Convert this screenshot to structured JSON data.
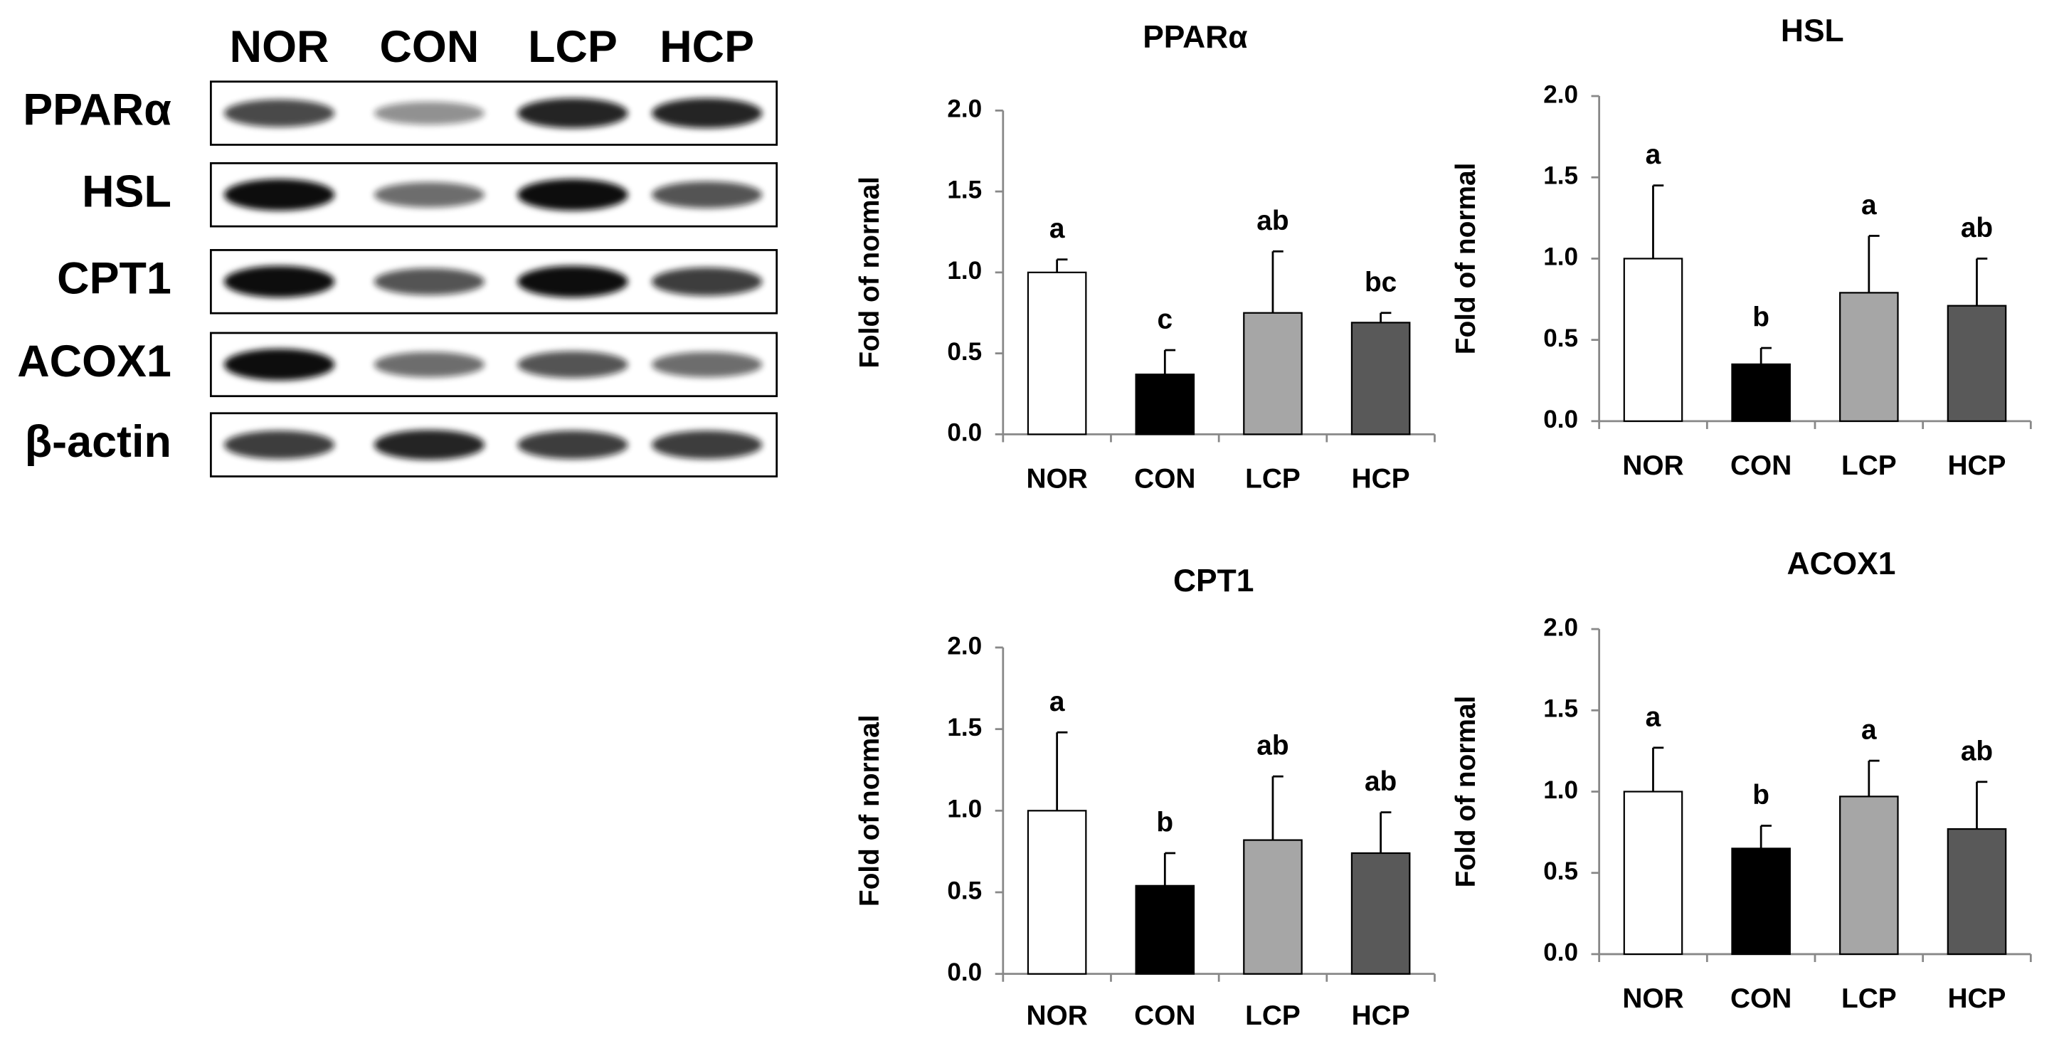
{
  "blot": {
    "lanes": [
      "NOR",
      "CON",
      "LCP",
      "HCP"
    ],
    "rows": [
      "PPARα",
      "HSL",
      "CPT1",
      "ACOX1",
      "β-actin"
    ]
  },
  "chart_data": [
    {
      "type": "bar",
      "title": "PPARα",
      "ylabel": "Fold of normal",
      "categories": [
        "NOR",
        "CON",
        "LCP",
        "HCP"
      ],
      "values": [
        1.0,
        0.37,
        0.75,
        0.69
      ],
      "errors": [
        0.08,
        0.15,
        0.38,
        0.06
      ],
      "annotations": [
        "a",
        "c",
        "ab",
        "bc"
      ],
      "colors": [
        "#ffffff",
        "#000000",
        "#a6a6a6",
        "#595959"
      ],
      "ylim": [
        0,
        2
      ],
      "yticks": [
        {
          "value": 0,
          "label": "0.0"
        },
        0.5,
        {
          "value": 1,
          "label": "1.0"
        },
        1.5,
        {
          "value": 2,
          "label": "2.0"
        }
      ]
    },
    {
      "type": "bar",
      "title": "HSL",
      "ylabel": "Fold of normal",
      "categories": [
        "NOR",
        "CON",
        "LCP",
        "HCP"
      ],
      "values": [
        1.0,
        0.35,
        0.79,
        0.71
      ],
      "errors": [
        0.45,
        0.1,
        0.35,
        0.29
      ],
      "annotations": [
        "a",
        "b",
        "a",
        "ab"
      ],
      "colors": [
        "#ffffff",
        "#000000",
        "#a6a6a6",
        "#595959"
      ],
      "ylim": [
        0,
        2
      ],
      "yticks": [
        {
          "value": 0,
          "label": "0.0"
        },
        0.5,
        {
          "value": 1,
          "label": "1.0"
        },
        1.5,
        {
          "value": 2,
          "label": "2.0"
        }
      ]
    },
    {
      "type": "bar",
      "title": "CPT1",
      "ylabel": "Fold of normal",
      "categories": [
        "NOR",
        "CON",
        "LCP",
        "HCP"
      ],
      "values": [
        1.0,
        0.54,
        0.82,
        0.74
      ],
      "errors": [
        0.48,
        0.2,
        0.39,
        0.25
      ],
      "annotations": [
        "a",
        "b",
        "ab",
        "ab"
      ],
      "colors": [
        "#ffffff",
        "#000000",
        "#a6a6a6",
        "#595959"
      ],
      "ylim": [
        0,
        2
      ],
      "yticks": [
        {
          "value": 0,
          "label": "0.0"
        },
        0.5,
        {
          "value": 1,
          "label": "1.0"
        },
        1.5,
        {
          "value": 2,
          "label": "2.0"
        }
      ]
    },
    {
      "type": "bar",
      "title": "ACOX1",
      "ylabel": "Fold of normal",
      "categories": [
        "NOR",
        "CON",
        "LCP",
        "HCP"
      ],
      "values": [
        1.0,
        0.65,
        0.97,
        0.77
      ],
      "errors": [
        0.27,
        0.14,
        0.22,
        0.29
      ],
      "annotations": [
        "a",
        "b",
        "a",
        "ab"
      ],
      "colors": [
        "#ffffff",
        "#000000",
        "#a6a6a6",
        "#595959"
      ],
      "ylim": [
        0,
        2
      ],
      "yticks": [
        {
          "value": 0,
          "label": "0.0"
        },
        0.5,
        {
          "value": 1,
          "label": "1.0"
        },
        1.5,
        {
          "value": 2,
          "label": "2.0"
        }
      ]
    }
  ]
}
